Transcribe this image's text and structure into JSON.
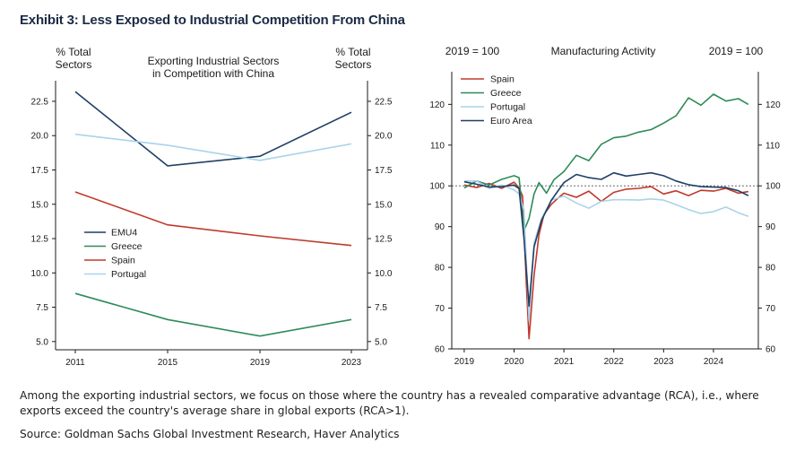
{
  "exhibit_title": "Exhibit 3: Less Exposed to Industrial Competition From China",
  "note": "Among the exporting industrial sectors, we focus on those where the country has a revealed comparative advantage (RCA), i.e., where exports exceed the country's average share in global exports (RCA>1).",
  "source": "Source: Goldman Sachs Global Investment Research, Haver Analytics",
  "colors": {
    "dark_navy": "#1f3f66",
    "green": "#2e8b57",
    "red": "#c0392b",
    "light_blue": "#a9d3ea",
    "axis": "#1a1a1a",
    "reference_line": "#555555"
  },
  "chart_data": [
    {
      "type": "line",
      "title": "Exporting Industrial Sectors\nin Competition with China",
      "ylabel_left": "% Total\nSectors",
      "ylabel_right": "% Total\nSectors",
      "x": [
        "2011",
        "2015",
        "2019",
        "2023"
      ],
      "ylim": [
        4.4,
        24.0
      ],
      "yticks": [
        "5.0",
        "7.5",
        "10.0",
        "12.5",
        "15.0",
        "17.5",
        "20.0",
        "22.5"
      ],
      "legend_position": "lower-left",
      "series": [
        {
          "name": "EMU4",
          "color": "#1f3f66",
          "values": [
            23.2,
            17.8,
            18.5,
            21.7
          ]
        },
        {
          "name": "Greece",
          "color": "#2e8b57",
          "values": [
            8.5,
            6.6,
            5.4,
            6.6
          ]
        },
        {
          "name": "Spain",
          "color": "#c0392b",
          "values": [
            15.9,
            13.5,
            12.7,
            12.0
          ]
        },
        {
          "name": "Portugal",
          "color": "#a9d3ea",
          "values": [
            20.1,
            19.3,
            18.2,
            19.4
          ]
        }
      ]
    },
    {
      "type": "line",
      "title": "Manufacturing Activity",
      "ylabel_left": "2019 = 100",
      "ylabel_right": "2019 = 100",
      "xlim": [
        2018.75,
        2024.9
      ],
      "xticks": [
        "2019",
        "2020",
        "2021",
        "2022",
        "2023",
        "2024"
      ],
      "ylim": [
        60,
        128
      ],
      "yticks": [
        "60",
        "70",
        "80",
        "90",
        "100",
        "110",
        "120"
      ],
      "reference_line": 100,
      "legend_position": "top-left",
      "series": [
        {
          "name": "Spain",
          "color": "#c0392b",
          "points": [
            [
              2019.0,
              100.2
            ],
            [
              2019.25,
              99.6
            ],
            [
              2019.5,
              100.6
            ],
            [
              2019.75,
              99.4
            ],
            [
              2020.0,
              100.9
            ],
            [
              2020.1,
              99.5
            ],
            [
              2020.17,
              97.5
            ],
            [
              2020.25,
              75
            ],
            [
              2020.3,
              62.5
            ],
            [
              2020.4,
              78
            ],
            [
              2020.5,
              88
            ],
            [
              2020.6,
              93
            ],
            [
              2020.75,
              95.5
            ],
            [
              2020.9,
              97.2
            ],
            [
              2021.0,
              98.2
            ],
            [
              2021.25,
              97.2
            ],
            [
              2021.5,
              98.7
            ],
            [
              2021.75,
              96.2
            ],
            [
              2022.0,
              98.4
            ],
            [
              2022.25,
              99.2
            ],
            [
              2022.5,
              99.4
            ],
            [
              2022.75,
              99.8
            ],
            [
              2023.0,
              98.0
            ],
            [
              2023.25,
              98.8
            ],
            [
              2023.5,
              97.6
            ],
            [
              2023.75,
              98.9
            ],
            [
              2024.0,
              98.7
            ],
            [
              2024.25,
              99.4
            ],
            [
              2024.5,
              98.2
            ],
            [
              2024.7,
              98.6
            ]
          ]
        },
        {
          "name": "Greece",
          "color": "#2e8b57",
          "points": [
            [
              2019.0,
              99.5
            ],
            [
              2019.25,
              101.2
            ],
            [
              2019.5,
              100.2
            ],
            [
              2019.75,
              101.6
            ],
            [
              2020.0,
              102.5
            ],
            [
              2020.1,
              102.0
            ],
            [
              2020.2,
              89
            ],
            [
              2020.3,
              92
            ],
            [
              2020.4,
              98
            ],
            [
              2020.5,
              100.8
            ],
            [
              2020.65,
              98.2
            ],
            [
              2020.8,
              101.5
            ],
            [
              2021.0,
              103.5
            ],
            [
              2021.25,
              107.5
            ],
            [
              2021.5,
              106.2
            ],
            [
              2021.75,
              110.2
            ],
            [
              2022.0,
              111.8
            ],
            [
              2022.25,
              112.2
            ],
            [
              2022.5,
              113.2
            ],
            [
              2022.75,
              113.8
            ],
            [
              2023.0,
              115.4
            ],
            [
              2023.25,
              117.2
            ],
            [
              2023.5,
              121.6
            ],
            [
              2023.75,
              119.8
            ],
            [
              2024.0,
              122.5
            ],
            [
              2024.25,
              120.8
            ],
            [
              2024.5,
              121.4
            ],
            [
              2024.7,
              120.0
            ]
          ]
        },
        {
          "name": "Portugal",
          "color": "#a9d3ea",
          "points": [
            [
              2019.0,
              101.2
            ],
            [
              2019.25,
              101.2
            ],
            [
              2019.5,
              99.4
            ],
            [
              2019.75,
              100.2
            ],
            [
              2020.0,
              99.0
            ],
            [
              2020.1,
              98.0
            ],
            [
              2020.2,
              94
            ],
            [
              2020.3,
              67
            ],
            [
              2020.4,
              86
            ],
            [
              2020.55,
              92
            ],
            [
              2020.75,
              96.5
            ],
            [
              2021.0,
              97.5
            ],
            [
              2021.25,
              95.8
            ],
            [
              2021.5,
              94.5
            ],
            [
              2021.75,
              96.2
            ],
            [
              2022.0,
              96.6
            ],
            [
              2022.25,
              96.6
            ],
            [
              2022.5,
              96.5
            ],
            [
              2022.75,
              96.8
            ],
            [
              2023.0,
              96.5
            ],
            [
              2023.25,
              95.4
            ],
            [
              2023.5,
              94.2
            ],
            [
              2023.75,
              93.2
            ],
            [
              2024.0,
              93.7
            ],
            [
              2024.25,
              94.8
            ],
            [
              2024.5,
              93.4
            ],
            [
              2024.7,
              92.5
            ]
          ]
        },
        {
          "name": "Euro Area",
          "color": "#1f3f66",
          "points": [
            [
              2019.0,
              101.0
            ],
            [
              2019.25,
              100.4
            ],
            [
              2019.5,
              99.7
            ],
            [
              2019.75,
              99.8
            ],
            [
              2020.0,
              100.2
            ],
            [
              2020.1,
              99.3
            ],
            [
              2020.2,
              87
            ],
            [
              2020.3,
              70.5
            ],
            [
              2020.4,
              85
            ],
            [
              2020.55,
              91.5
            ],
            [
              2020.75,
              96.5
            ],
            [
              2021.0,
              100.8
            ],
            [
              2021.25,
              102.8
            ],
            [
              2021.5,
              102.0
            ],
            [
              2021.75,
              101.6
            ],
            [
              2022.0,
              103.2
            ],
            [
              2022.25,
              102.4
            ],
            [
              2022.5,
              102.8
            ],
            [
              2022.75,
              103.2
            ],
            [
              2023.0,
              102.5
            ],
            [
              2023.25,
              101.2
            ],
            [
              2023.5,
              100.3
            ],
            [
              2023.75,
              99.8
            ],
            [
              2024.0,
              99.7
            ],
            [
              2024.25,
              99.6
            ],
            [
              2024.5,
              98.8
            ],
            [
              2024.7,
              97.6
            ]
          ]
        }
      ]
    }
  ]
}
